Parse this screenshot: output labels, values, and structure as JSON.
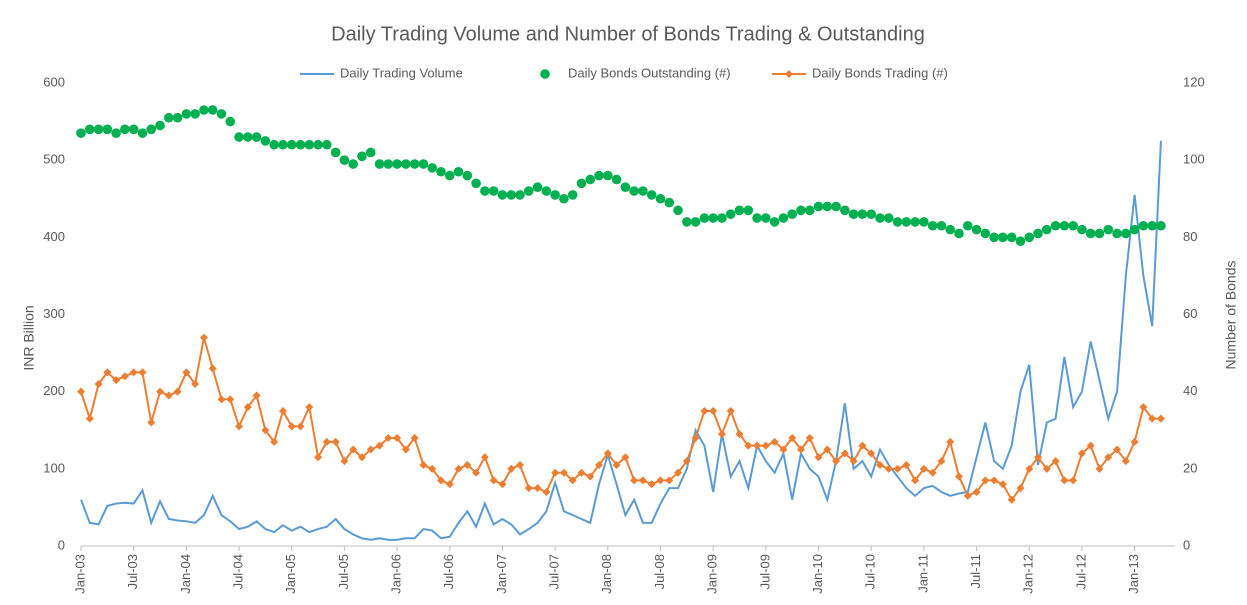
{
  "chart_data": {
    "type": "line",
    "title": "Daily Trading Volume and Number of Bonds Trading & Outstanding",
    "ylabel": "INR Billion",
    "y2label": "Number of Bonds",
    "categories": [
      "Jan-03",
      null,
      null,
      null,
      null,
      null,
      "Jul-03",
      null,
      null,
      null,
      null,
      null,
      "Jan-04",
      null,
      null,
      null,
      null,
      null,
      "Jul-04",
      null,
      null,
      null,
      null,
      null,
      "Jan-05",
      null,
      null,
      null,
      null,
      null,
      "Jul-05",
      null,
      null,
      null,
      null,
      null,
      "Jan-06",
      null,
      null,
      null,
      null,
      null,
      "Jul-06",
      null,
      null,
      null,
      null,
      null,
      "Jan-07",
      null,
      null,
      null,
      null,
      null,
      "Jul-07",
      null,
      null,
      null,
      null,
      null,
      "Jan-08",
      null,
      null,
      null,
      null,
      null,
      "Jul-08",
      null,
      null,
      null,
      null,
      null,
      "Jan-09",
      null,
      null,
      null,
      null,
      null,
      "Jul-09",
      null,
      null,
      null,
      null,
      null,
      "Jan-10",
      null,
      null,
      null,
      null,
      null,
      "Jul-10",
      null,
      null,
      null,
      null,
      null,
      "Jan-11",
      null,
      null,
      null,
      null,
      null,
      "Jul-11",
      null,
      null,
      null,
      null,
      null,
      "Jan-12",
      null,
      null,
      null,
      null,
      null,
      "Jul-12",
      null,
      null,
      null,
      null,
      null,
      "Jan-13",
      null,
      null,
      null
    ],
    "ylim": [
      0,
      600
    ],
    "yticks": [
      0,
      100,
      200,
      300,
      400,
      500,
      600
    ],
    "y2lim": [
      0,
      120
    ],
    "y2ticks": [
      0,
      20,
      40,
      60,
      80,
      100,
      120
    ],
    "grid": false,
    "legend": "top",
    "series": [
      {
        "name": "Daily Trading Volume",
        "color": "#5b9bd5",
        "marker": "none",
        "values": [
          60,
          30,
          28,
          52,
          55,
          56,
          55,
          72,
          30,
          58,
          35,
          33,
          32,
          30,
          40,
          65,
          40,
          32,
          22,
          25,
          32,
          22,
          18,
          27,
          20,
          25,
          18,
          22,
          25,
          35,
          22,
          15,
          10,
          8,
          10,
          8,
          8,
          10,
          10,
          22,
          20,
          10,
          12,
          30,
          45,
          25,
          55,
          28,
          35,
          28,
          15,
          22,
          30,
          45,
          82,
          45,
          40,
          35,
          30,
          80,
          118,
          80,
          40,
          60,
          30,
          30,
          55,
          75,
          75,
          100,
          150,
          130,
          70,
          145,
          90,
          110,
          75,
          130,
          110,
          95,
          120,
          60,
          120,
          100,
          90,
          60,
          110,
          185,
          100,
          110,
          90,
          125,
          105,
          90,
          75,
          65,
          75,
          78,
          70,
          65,
          68,
          70,
          115,
          160,
          110,
          100,
          130,
          200,
          235,
          105,
          160,
          165,
          245,
          180,
          200,
          265,
          215,
          165,
          200,
          350,
          455,
          350,
          285,
          525
        ]
      },
      {
        "name": "Daily Bonds Outstanding (#)",
        "color": "#00b050",
        "marker": "circle",
        "axis": "y2",
        "values": [
          107,
          108,
          108,
          108,
          107,
          108,
          108,
          107,
          108,
          109,
          111,
          111,
          112,
          112,
          113,
          113,
          112,
          110,
          106,
          106,
          106,
          105,
          104,
          104,
          104,
          104,
          104,
          104,
          104,
          102,
          100,
          99,
          101,
          102,
          99,
          99,
          99,
          99,
          99,
          99,
          98,
          97,
          96,
          97,
          96,
          94,
          92,
          92,
          91,
          91,
          91,
          92,
          93,
          92,
          91,
          90,
          91,
          94,
          95,
          96,
          96,
          95,
          93,
          92,
          92,
          91,
          90,
          89,
          87,
          84,
          84,
          85,
          85,
          85,
          86,
          87,
          87,
          85,
          85,
          84,
          85,
          86,
          87,
          87,
          88,
          88,
          88,
          87,
          86,
          86,
          86,
          85,
          85,
          84,
          84,
          84,
          84,
          83,
          83,
          82,
          81,
          83,
          82,
          81,
          80,
          80,
          80,
          79,
          80,
          81,
          82,
          83,
          83,
          83,
          82,
          81,
          81,
          82,
          81,
          81,
          82,
          83,
          83,
          83
        ]
      },
      {
        "name": "Daily Bonds Trading (#)",
        "color": "#ed7d31",
        "marker": "diamond",
        "axis": "y2",
        "values": [
          40,
          33,
          42,
          45,
          43,
          44,
          45,
          45,
          32,
          40,
          39,
          40,
          45,
          42,
          54,
          46,
          38,
          38,
          31,
          36,
          39,
          30,
          27,
          35,
          31,
          31,
          36,
          23,
          27,
          27,
          22,
          25,
          23,
          25,
          26,
          28,
          28,
          25,
          28,
          21,
          20,
          17,
          16,
          20,
          21,
          19,
          23,
          17,
          16,
          20,
          21,
          15,
          15,
          14,
          19,
          19,
          17,
          19,
          18,
          21,
          24,
          21,
          23,
          17,
          17,
          16,
          17,
          17,
          19,
          22,
          28,
          35,
          35,
          29,
          35,
          29,
          26,
          26,
          26,
          27,
          25,
          28,
          25,
          28,
          23,
          25,
          22,
          24,
          22,
          26,
          24,
          21,
          20,
          20,
          21,
          17,
          20,
          19,
          22,
          27,
          18,
          13,
          14,
          17,
          17,
          16,
          12,
          15,
          20,
          23,
          20,
          22,
          17,
          17,
          24,
          26,
          20,
          23,
          25,
          22,
          27,
          36,
          33,
          33
        ]
      }
    ]
  }
}
